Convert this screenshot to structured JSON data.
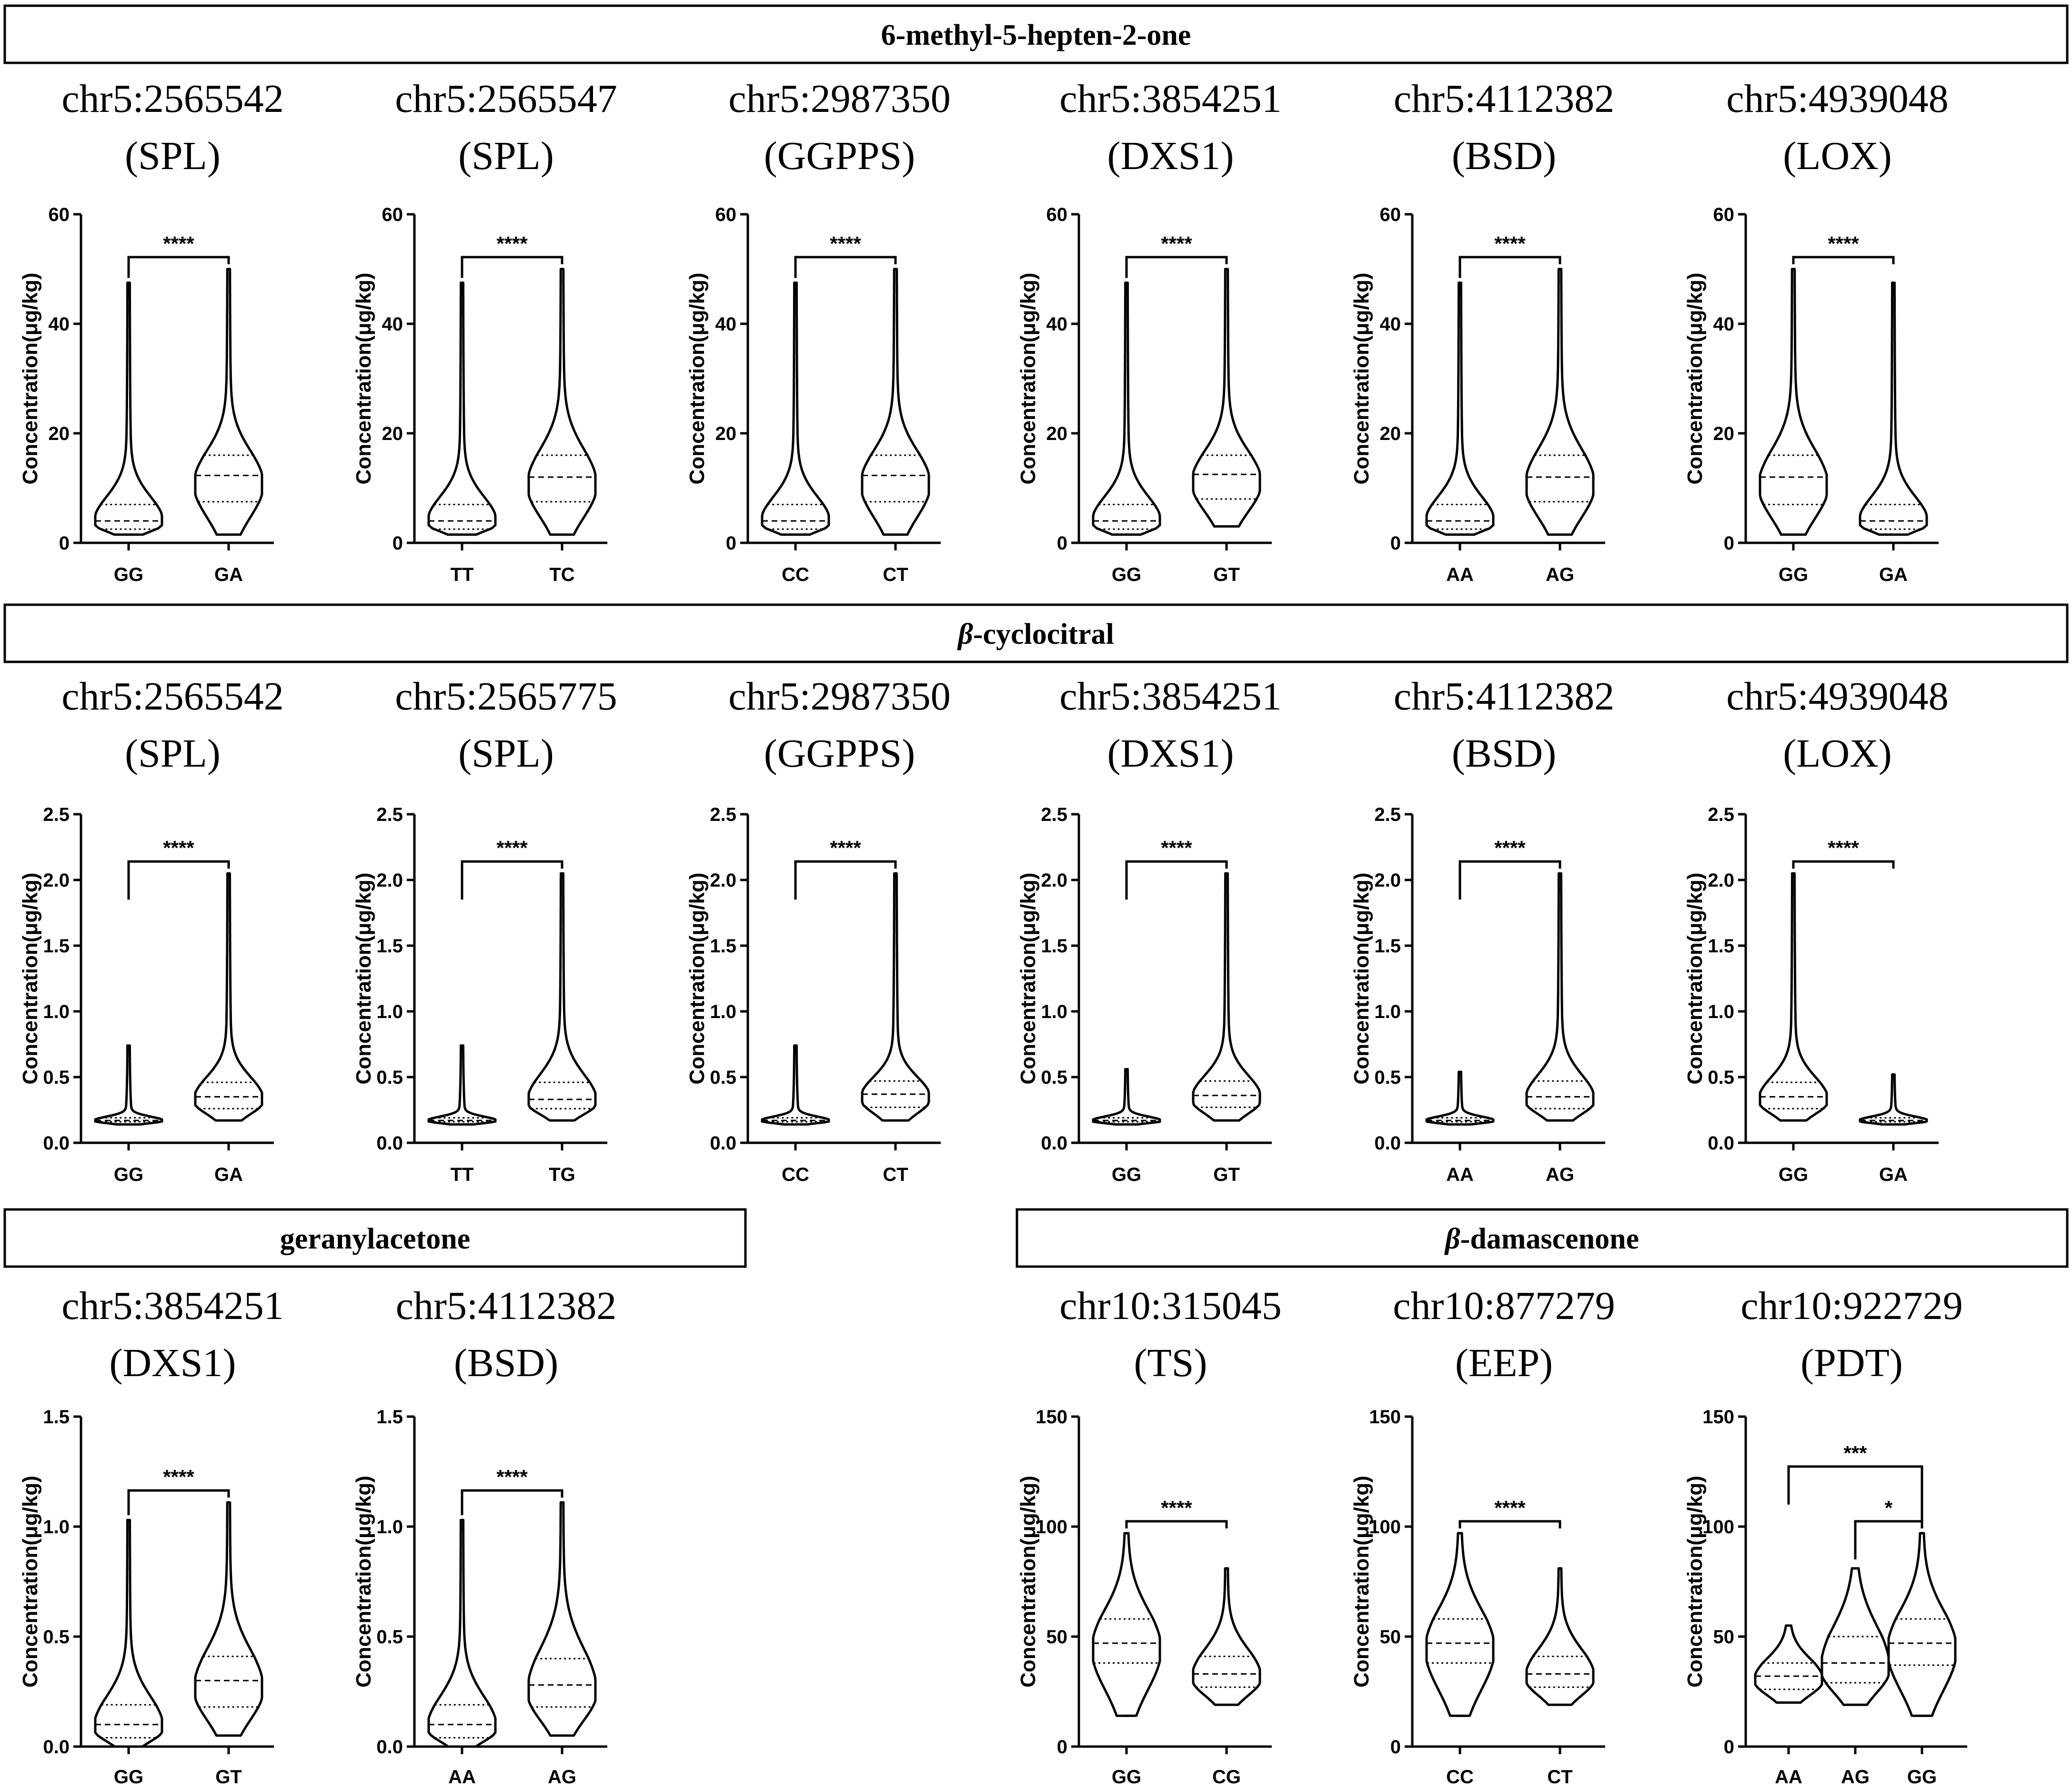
{
  "colors": {
    "highlight": "#ff0000",
    "default": "#000000",
    "line": "#000000",
    "background": "#ffffff"
  },
  "sections": [
    {
      "title": "6-methyl-5-hepten-2-one",
      "italic_prefix": ""
    },
    {
      "title": "-cyclocitral",
      "italic_prefix": "β"
    },
    {
      "title": "geranylacetone",
      "italic_prefix": ""
    },
    {
      "title": "-damascenone",
      "italic_prefix": "β"
    }
  ],
  "chart_data": [
    {
      "type": "violin",
      "section": 0,
      "title": "chr5:2565542",
      "subtitle": "(SPL)",
      "title_color": "#000000",
      "ylabel": "Concentration(μg/kg)",
      "ylim": [
        0,
        60
      ],
      "yticks": [
        0,
        20,
        40,
        60
      ],
      "categories": [
        "GG",
        "GA"
      ],
      "series": [
        {
          "category": "GG",
          "min": 1.5,
          "q1": 2.5,
          "median": 4,
          "q3": 7,
          "max": 47.5
        },
        {
          "category": "GA",
          "min": 1.5,
          "q1": 7.5,
          "median": 12.3,
          "q3": 16,
          "max": 50
        }
      ],
      "significance": [
        {
          "from": "GG",
          "to": "GA",
          "label": "****"
        }
      ]
    },
    {
      "type": "violin",
      "section": 0,
      "title": "chr5:2565547",
      "subtitle": "(SPL)",
      "title_color": "#000000",
      "ylabel": "Concentration(μg/kg)",
      "ylim": [
        0,
        60
      ],
      "yticks": [
        0,
        20,
        40,
        60
      ],
      "categories": [
        "TT",
        "TC"
      ],
      "series": [
        {
          "category": "TT",
          "min": 1.5,
          "q1": 2.5,
          "median": 4,
          "q3": 7,
          "max": 47.5
        },
        {
          "category": "TC",
          "min": 1.5,
          "q1": 7.5,
          "median": 12,
          "q3": 16,
          "max": 50
        }
      ],
      "significance": [
        {
          "from": "TT",
          "to": "TC",
          "label": "****"
        }
      ]
    },
    {
      "type": "violin",
      "section": 0,
      "title": "chr5:2987350",
      "subtitle": "(GGPPS)",
      "title_color": "#ff0000",
      "ylabel": "Concentration(μg/kg)",
      "ylim": [
        0,
        60
      ],
      "yticks": [
        0,
        20,
        40,
        60
      ],
      "categories": [
        "CC",
        "CT"
      ],
      "series": [
        {
          "category": "CC",
          "min": 1.5,
          "q1": 2.5,
          "median": 4,
          "q3": 7,
          "max": 47.5
        },
        {
          "category": "CT",
          "min": 1.5,
          "q1": 7.5,
          "median": 12.3,
          "q3": 16,
          "max": 50
        }
      ],
      "significance": [
        {
          "from": "CC",
          "to": "CT",
          "label": "****"
        }
      ]
    },
    {
      "type": "violin",
      "section": 0,
      "title": "chr5:3854251",
      "subtitle": "(DXS1)",
      "title_color": "#ff0000",
      "ylabel": "Concentration(μg/kg)",
      "ylim": [
        0,
        60
      ],
      "yticks": [
        0,
        20,
        40,
        60
      ],
      "categories": [
        "GG",
        "GT"
      ],
      "series": [
        {
          "category": "GG",
          "min": 1.5,
          "q1": 2.5,
          "median": 4,
          "q3": 7,
          "max": 47.5
        },
        {
          "category": "GT",
          "min": 3,
          "q1": 8,
          "median": 12.5,
          "q3": 16,
          "max": 50
        }
      ],
      "significance": [
        {
          "from": "GG",
          "to": "GT",
          "label": "****"
        }
      ]
    },
    {
      "type": "violin",
      "section": 0,
      "title": "chr5:4112382",
      "subtitle": "(BSD)",
      "title_color": "#ff0000",
      "ylabel": "Concentration(μg/kg)",
      "ylim": [
        0,
        60
      ],
      "yticks": [
        0,
        20,
        40,
        60
      ],
      "categories": [
        "AA",
        "AG"
      ],
      "series": [
        {
          "category": "AA",
          "min": 1.5,
          "q1": 2.5,
          "median": 4,
          "q3": 7,
          "max": 47.5
        },
        {
          "category": "AG",
          "min": 1.5,
          "q1": 7.5,
          "median": 12,
          "q3": 16,
          "max": 50
        }
      ],
      "significance": [
        {
          "from": "AA",
          "to": "AG",
          "label": "****"
        }
      ]
    },
    {
      "type": "violin",
      "section": 0,
      "title": "chr5:4939048",
      "subtitle": "(LOX)",
      "title_color": "#000000",
      "ylabel": "Concentration(μg/kg)",
      "ylim": [
        0,
        60
      ],
      "yticks": [
        0,
        20,
        40,
        60
      ],
      "categories": [
        "GG",
        "GA"
      ],
      "series": [
        {
          "category": "GG",
          "min": 1.5,
          "q1": 7,
          "median": 12,
          "q3": 16,
          "max": 50
        },
        {
          "category": "GA",
          "min": 1.5,
          "q1": 2.5,
          "median": 4,
          "q3": 7,
          "max": 47.5
        }
      ],
      "significance": [
        {
          "from": "GG",
          "to": "GA",
          "label": "****"
        }
      ]
    },
    {
      "type": "violin",
      "section": 1,
      "title": "chr5:2565542",
      "subtitle": "(SPL)",
      "title_color": "#000000",
      "ylabel": "Concentration(μg/kg)",
      "ylim": [
        0,
        2.5
      ],
      "yticks": [
        0.0,
        0.5,
        1.0,
        1.5,
        2.0,
        2.5
      ],
      "categories": [
        "GG",
        "GA"
      ],
      "series": [
        {
          "category": "GG",
          "min": 0.14,
          "q1": 0.16,
          "median": 0.17,
          "q3": 0.19,
          "max": 0.74
        },
        {
          "category": "GA",
          "min": 0.17,
          "q1": 0.26,
          "median": 0.35,
          "q3": 0.46,
          "max": 2.05
        }
      ],
      "significance": [
        {
          "from": "GG",
          "to": "GA",
          "label": "****"
        }
      ]
    },
    {
      "type": "violin",
      "section": 1,
      "title": "chr5:2565775",
      "subtitle": "(SPL)",
      "title_color": "#000000",
      "ylabel": "Concentration(μg/kg)",
      "ylim": [
        0,
        2.5
      ],
      "yticks": [
        0.0,
        0.5,
        1.0,
        1.5,
        2.0,
        2.5
      ],
      "categories": [
        "TT",
        "TG"
      ],
      "series": [
        {
          "category": "TT",
          "min": 0.14,
          "q1": 0.16,
          "median": 0.17,
          "q3": 0.19,
          "max": 0.74
        },
        {
          "category": "TG",
          "min": 0.17,
          "q1": 0.26,
          "median": 0.33,
          "q3": 0.46,
          "max": 2.05
        }
      ],
      "significance": [
        {
          "from": "TT",
          "to": "TG",
          "label": "****"
        }
      ]
    },
    {
      "type": "violin",
      "section": 1,
      "title": "chr5:2987350",
      "subtitle": "(GGPPS)",
      "title_color": "#ff0000",
      "ylabel": "Concentration(μg/kg)",
      "ylim": [
        0,
        2.5
      ],
      "yticks": [
        0.0,
        0.5,
        1.0,
        1.5,
        2.0,
        2.5
      ],
      "categories": [
        "CC",
        "CT"
      ],
      "series": [
        {
          "category": "CC",
          "min": 0.14,
          "q1": 0.16,
          "median": 0.17,
          "q3": 0.19,
          "max": 0.74
        },
        {
          "category": "CT",
          "min": 0.17,
          "q1": 0.27,
          "median": 0.37,
          "q3": 0.47,
          "max": 2.05
        }
      ],
      "significance": [
        {
          "from": "CC",
          "to": "CT",
          "label": "****"
        }
      ]
    },
    {
      "type": "violin",
      "section": 1,
      "title": "chr5:3854251",
      "subtitle": "(DXS1)",
      "title_color": "#ff0000",
      "ylabel": "Concentration(μg/kg)",
      "ylim": [
        0,
        2.5
      ],
      "yticks": [
        0.0,
        0.5,
        1.0,
        1.5,
        2.0,
        2.5
      ],
      "categories": [
        "GG",
        "GT"
      ],
      "series": [
        {
          "category": "GG",
          "min": 0.14,
          "q1": 0.16,
          "median": 0.17,
          "q3": 0.19,
          "max": 0.56
        },
        {
          "category": "GT",
          "min": 0.17,
          "q1": 0.27,
          "median": 0.36,
          "q3": 0.47,
          "max": 2.05
        }
      ],
      "significance": [
        {
          "from": "GG",
          "to": "GT",
          "label": "****"
        }
      ]
    },
    {
      "type": "violin",
      "section": 1,
      "title": "chr5:4112382",
      "subtitle": "(BSD)",
      "title_color": "#ff0000",
      "ylabel": "Concentration(μg/kg)",
      "ylim": [
        0,
        2.5
      ],
      "yticks": [
        0.0,
        0.5,
        1.0,
        1.5,
        2.0,
        2.5
      ],
      "categories": [
        "AA",
        "AG"
      ],
      "series": [
        {
          "category": "AA",
          "min": 0.14,
          "q1": 0.16,
          "median": 0.17,
          "q3": 0.19,
          "max": 0.54
        },
        {
          "category": "AG",
          "min": 0.17,
          "q1": 0.26,
          "median": 0.35,
          "q3": 0.47,
          "max": 2.05
        }
      ],
      "significance": [
        {
          "from": "AA",
          "to": "AG",
          "label": "****"
        }
      ]
    },
    {
      "type": "violin",
      "section": 1,
      "title": "chr5:4939048",
      "subtitle": "(LOX)",
      "title_color": "#000000",
      "ylabel": "Concentration(μg/kg)",
      "ylim": [
        0,
        2.5
      ],
      "yticks": [
        0.0,
        0.5,
        1.0,
        1.5,
        2.0,
        2.5
      ],
      "categories": [
        "GG",
        "GA"
      ],
      "series": [
        {
          "category": "GG",
          "min": 0.17,
          "q1": 0.26,
          "median": 0.35,
          "q3": 0.46,
          "max": 2.05
        },
        {
          "category": "GA",
          "min": 0.14,
          "q1": 0.16,
          "median": 0.17,
          "q3": 0.19,
          "max": 0.52
        }
      ],
      "significance": [
        {
          "from": "GG",
          "to": "GA",
          "label": "****"
        }
      ]
    },
    {
      "type": "violin",
      "section": 2,
      "title": "chr5:3854251",
      "subtitle": "(DXS1)",
      "title_color": "#ff0000",
      "ylabel": "Concentration(μg/kg)",
      "ylim": [
        0,
        1.5
      ],
      "yticks": [
        0.0,
        0.5,
        1.0,
        1.5
      ],
      "categories": [
        "GG",
        "GT"
      ],
      "series": [
        {
          "category": "GG",
          "min": 0.0,
          "q1": 0.04,
          "median": 0.1,
          "q3": 0.19,
          "max": 1.03
        },
        {
          "category": "GT",
          "min": 0.05,
          "q1": 0.18,
          "median": 0.3,
          "q3": 0.41,
          "max": 1.11
        }
      ],
      "significance": [
        {
          "from": "GG",
          "to": "GT",
          "label": "****"
        }
      ]
    },
    {
      "type": "violin",
      "section": 2,
      "title": "chr5:4112382",
      "subtitle": "(BSD)",
      "title_color": "#ff0000",
      "ylabel": "Concentration(μg/kg)",
      "ylim": [
        0,
        1.5
      ],
      "yticks": [
        0.0,
        0.5,
        1.0,
        1.5
      ],
      "categories": [
        "AA",
        "AG"
      ],
      "series": [
        {
          "category": "AA",
          "min": 0.0,
          "q1": 0.04,
          "median": 0.1,
          "q3": 0.19,
          "max": 1.03
        },
        {
          "category": "AG",
          "min": 0.05,
          "q1": 0.18,
          "median": 0.28,
          "q3": 0.4,
          "max": 1.11
        }
      ],
      "significance": [
        {
          "from": "AA",
          "to": "AG",
          "label": "****"
        }
      ]
    },
    {
      "type": "violin",
      "section": 3,
      "title": "chr10:315045",
      "subtitle": "(TS)",
      "title_color": "#ff0000",
      "ylabel": "Concentration(μg/kg)",
      "ylim": [
        0,
        150
      ],
      "yticks": [
        0,
        50,
        100,
        150
      ],
      "categories": [
        "GG",
        "CG"
      ],
      "series": [
        {
          "category": "GG",
          "min": 14,
          "q1": 38,
          "median": 47,
          "q3": 58,
          "max": 97
        },
        {
          "category": "CG",
          "min": 19,
          "q1": 27,
          "median": 33,
          "q3": 41,
          "max": 81
        }
      ],
      "significance": [
        {
          "from": "GG",
          "to": "CG",
          "label": "****"
        }
      ]
    },
    {
      "type": "violin",
      "section": 3,
      "title": "chr10:877279",
      "subtitle": "(EEP)",
      "title_color": "#000000",
      "ylabel": "Concentration(μg/kg)",
      "ylim": [
        0,
        150
      ],
      "yticks": [
        0,
        50,
        100,
        150
      ],
      "categories": [
        "CC",
        "CT"
      ],
      "series": [
        {
          "category": "CC",
          "min": 14,
          "q1": 38,
          "median": 47,
          "q3": 58,
          "max": 97
        },
        {
          "category": "CT",
          "min": 19,
          "q1": 27,
          "median": 33,
          "q3": 41,
          "max": 81
        }
      ],
      "significance": [
        {
          "from": "CC",
          "to": "CT",
          "label": "****"
        }
      ]
    },
    {
      "type": "violin",
      "section": 3,
      "title": "chr10:922729",
      "subtitle": "(PDT)",
      "title_color": "#000000",
      "ylabel": "Concentration(μg/kg)",
      "ylim": [
        0,
        150
      ],
      "yticks": [
        0,
        50,
        100,
        150
      ],
      "categories": [
        "AA",
        "AG",
        "GG"
      ],
      "series": [
        {
          "category": "AA",
          "min": 20,
          "q1": 26,
          "median": 32,
          "q3": 38,
          "max": 55
        },
        {
          "category": "AG",
          "min": 19,
          "q1": 29,
          "median": 38,
          "q3": 50,
          "max": 81
        },
        {
          "category": "GG",
          "min": 14,
          "q1": 37,
          "median": 47,
          "q3": 58,
          "max": 97
        }
      ],
      "significance": [
        {
          "from": "AA",
          "to": "GG",
          "label": "***"
        },
        {
          "from": "AG",
          "to": "GG",
          "label": "*"
        }
      ]
    }
  ]
}
